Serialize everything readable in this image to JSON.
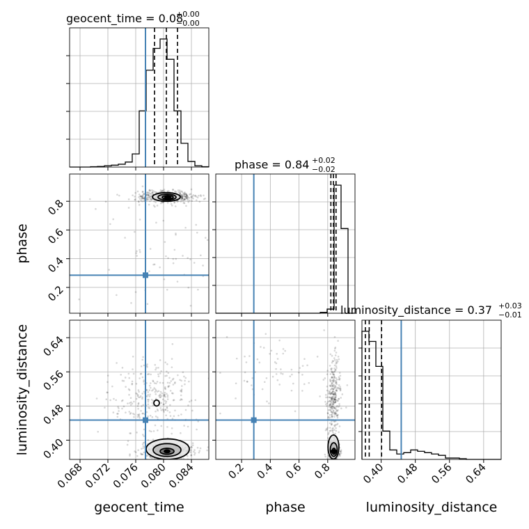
{
  "chart_data": {
    "type": "corner",
    "parameters": [
      "geocent_time",
      "phase",
      "luminosity_distance"
    ],
    "truth": {
      "geocent_time": 0.0774,
      "phase": 0.285,
      "luminosity_distance": 0.447
    },
    "colors": {
      "truth": "#4682b4",
      "hist": "#000000",
      "grid": "#b0b0b0",
      "scatter": "#000000"
    },
    "grid": true,
    "axes": {
      "geocent_time": {
        "range": [
          0.0665,
          0.0865
        ],
        "ticks": [
          "0.068",
          "0.072",
          "0.076",
          "0.080",
          "0.084"
        ],
        "tick_values": [
          0.068,
          0.072,
          0.076,
          0.08,
          0.084
        ]
      },
      "phase": {
        "range": [
          0.02,
          0.99
        ],
        "ticks": [
          "0.2",
          "0.4",
          "0.6",
          "0.8"
        ],
        "tick_values": [
          0.2,
          0.4,
          0.6,
          0.8
        ]
      },
      "luminosity_distance": {
        "range": [
          0.355,
          0.681
        ],
        "ticks": [
          "0.40",
          "0.48",
          "0.56",
          "0.64"
        ],
        "tick_values": [
          0.4,
          0.48,
          0.56,
          0.64
        ]
      }
    },
    "marginals": [
      {
        "name": "geocent_time",
        "title": {
          "main": "geocent_time = 0.08",
          "sup": "+0.00",
          "sub": "−0.00"
        },
        "quantiles": [
          0.0787,
          0.0804,
          0.082
        ],
        "bins": [
          0.0665,
          0.0675,
          0.0685,
          0.0695,
          0.0705,
          0.0715,
          0.0725,
          0.0735,
          0.0745,
          0.0755,
          0.0765,
          0.0775,
          0.0785,
          0.0795,
          0.0805,
          0.0815,
          0.0825,
          0.0835,
          0.0845,
          0.0855,
          0.0865
        ],
        "counts": [
          0,
          0,
          0,
          1,
          2,
          4,
          6,
          9,
          16,
          42,
          180,
          310,
          380,
          410,
          345,
          180,
          76,
          18,
          4,
          1
        ]
      },
      {
        "name": "phase",
        "title": {
          "main": "phase = 0.84",
          "sup": "+0.02",
          "sub": "−0.02"
        },
        "quantiles": [
          0.822,
          0.84,
          0.858
        ],
        "bins": [
          0.02,
          0.0685,
          0.117,
          0.1655,
          0.214,
          0.2625,
          0.311,
          0.3595,
          0.408,
          0.4565,
          0.505,
          0.5535,
          0.602,
          0.6505,
          0.699,
          0.7475,
          0.796,
          0.8445,
          0.893,
          0.9415,
          0.99
        ],
        "counts": [
          0,
          0,
          0,
          0,
          0,
          0,
          0,
          0,
          0,
          0,
          0,
          0,
          0,
          0,
          0,
          2,
          10,
          310,
          205,
          0
        ]
      },
      {
        "name": "luminosity_distance",
        "title": {
          "main": "luminosity_distance = 0.37",
          "sup": "+0.03",
          "sub": "−0.01"
        },
        "quantiles": [
          0.363,
          0.372,
          0.401
        ],
        "bins": [
          0.355,
          0.3713,
          0.3876,
          0.4039,
          0.4202,
          0.4365,
          0.4528,
          0.4691,
          0.4854,
          0.5017,
          0.518,
          0.5343,
          0.5506,
          0.5669,
          0.5832,
          0.5995,
          0.6158,
          0.6321,
          0.6484,
          0.6647,
          0.681
        ],
        "counts": [
          190,
          175,
          138,
          42,
          14,
          8,
          10,
          14,
          12,
          10,
          8,
          6,
          2,
          2,
          1,
          0,
          0,
          0,
          0,
          0
        ]
      }
    ],
    "pairs": [
      {
        "x": "geocent_time",
        "y": "phase",
        "clusters": [
          {
            "cx": 0.0803,
            "cy": 0.832,
            "sx": 0.002,
            "sy": 0.02,
            "n": 520
          },
          {
            "cx": 0.079,
            "cy": 0.5,
            "sx": 0.0045,
            "sy": 0.25,
            "n": 70
          }
        ],
        "contours": [
          {
            "cx": 0.0804,
            "cy": 0.83,
            "rx": 0.002,
            "ry": 0.03
          },
          {
            "cx": 0.0805,
            "cy": 0.829,
            "rx": 0.0013,
            "ry": 0.02
          },
          {
            "cx": 0.0806,
            "cy": 0.828,
            "rx": 0.0008,
            "ry": 0.012
          }
        ]
      },
      {
        "x": "geocent_time",
        "y": "luminosity_distance",
        "clusters": [
          {
            "cx": 0.0805,
            "cy": 0.375,
            "sx": 0.002,
            "sy": 0.01,
            "n": 420
          },
          {
            "cx": 0.0785,
            "cy": 0.5,
            "sx": 0.003,
            "sy": 0.04,
            "n": 300
          }
        ],
        "contours": [
          {
            "cx": 0.0806,
            "cy": 0.379,
            "rx": 0.0031,
            "ry": 0.024
          },
          {
            "cx": 0.0805,
            "cy": 0.377,
            "rx": 0.002,
            "ry": 0.015
          },
          {
            "cx": 0.0805,
            "cy": 0.374,
            "rx": 0.001,
            "ry": 0.007
          },
          {
            "cx": 0.079,
            "cy": 0.487,
            "rx": 0.0004,
            "ry": 0.007
          }
        ]
      },
      {
        "x": "phase",
        "y": "luminosity_distance",
        "clusters": [
          {
            "cx": 0.84,
            "cy": 0.378,
            "sx": 0.02,
            "sy": 0.012,
            "n": 380
          },
          {
            "cx": 0.84,
            "cy": 0.5,
            "sx": 0.025,
            "sy": 0.04,
            "n": 300
          },
          {
            "cx": 0.45,
            "cy": 0.56,
            "sx": 0.2,
            "sy": 0.04,
            "n": 70
          }
        ],
        "contours": [
          {
            "cx": 0.84,
            "cy": 0.384,
            "rx": 0.038,
            "ry": 0.028
          },
          {
            "cx": 0.842,
            "cy": 0.378,
            "rx": 0.024,
            "ry": 0.016
          },
          {
            "cx": 0.843,
            "cy": 0.374,
            "rx": 0.012,
            "ry": 0.007
          }
        ]
      }
    ],
    "ylabels": {
      "phase": "phase",
      "luminosity_distance": "luminosity_distance"
    },
    "xlabels": {
      "geocent_time": "geocent_time",
      "phase": "phase",
      "luminosity_distance": "luminosity_distance"
    }
  }
}
